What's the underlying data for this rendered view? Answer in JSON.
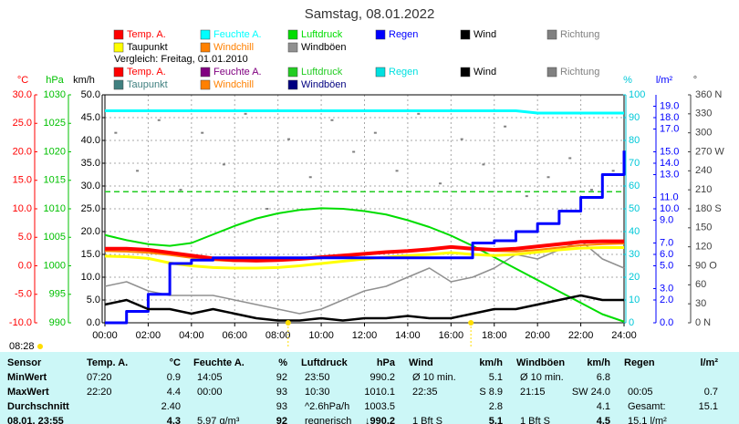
{
  "chart_data": {
    "type": "line",
    "title": "Samstag, 08.01.2022",
    "xlim": [
      0,
      24
    ],
    "xticks": [
      {
        "value": 0,
        "label": "00:00"
      },
      {
        "value": 2,
        "label": "02:00"
      },
      {
        "value": 4,
        "label": "04:00"
      },
      {
        "value": 6,
        "label": "06:00"
      },
      {
        "value": 8,
        "label": "08:00"
      },
      {
        "value": 10,
        "label": "10:00"
      },
      {
        "value": 12,
        "label": "12:00"
      },
      {
        "value": 14,
        "label": "14:00"
      },
      {
        "value": 16,
        "label": "16:00"
      },
      {
        "value": 18,
        "label": "18:00"
      },
      {
        "value": 20,
        "label": "20:00"
      },
      {
        "value": 22,
        "label": "22:00"
      },
      {
        "value": 24,
        "label": "24:00"
      }
    ],
    "grid": true,
    "grid_axis": 2,
    "axes": [
      {
        "unit": "°C",
        "color": "#ff0000",
        "lim": [
          -10,
          30
        ],
        "ticks": [
          {
            "value": 30,
            "label": "30.0"
          },
          {
            "value": 25,
            "label": "25.0"
          },
          {
            "value": 20,
            "label": "20.0"
          },
          {
            "value": 15,
            "label": "15.0"
          },
          {
            "value": 10,
            "label": "10.0"
          },
          {
            "value": 5,
            "label": "5.0"
          },
          {
            "value": 0,
            "label": "0.0"
          },
          {
            "value": -5,
            "label": "-5.0"
          },
          {
            "value": -10,
            "label": "-10.0"
          }
        ]
      },
      {
        "unit": "hPa",
        "color": "#00c000",
        "lim": [
          990,
          1030
        ],
        "ticks": [
          1030,
          1025,
          1020,
          1015,
          1010,
          1005,
          1000,
          995,
          990
        ]
      },
      {
        "unit": "km/h",
        "color": "#000000",
        "lim": [
          0,
          50
        ],
        "ticks": [
          {
            "value": 50,
            "label": "50.0"
          },
          {
            "value": 45,
            "label": "45.0"
          },
          {
            "value": 40,
            "label": "40.0"
          },
          {
            "value": 35,
            "label": "35.0"
          },
          {
            "value": 30,
            "label": "30.0"
          },
          {
            "value": 25,
            "label": "25.0"
          },
          {
            "value": 20,
            "label": "20.0"
          },
          {
            "value": 15,
            "label": "15.0"
          },
          {
            "value": 10,
            "label": "10.0"
          },
          {
            "value": 5,
            "label": "5.0"
          },
          {
            "value": 0,
            "label": "0.0"
          }
        ]
      },
      {
        "unit": "%",
        "color": "#00c8d8",
        "lim": [
          0,
          100
        ],
        "ticks": [
          100,
          90,
          80,
          70,
          60,
          50,
          40,
          30,
          20,
          10,
          0
        ]
      },
      {
        "unit": "l/m²",
        "color": "#0000ff",
        "lim": [
          0,
          20
        ],
        "ticks": [
          {
            "value": 19,
            "label": "19.0"
          },
          {
            "value": 18,
            "label": "18.0"
          },
          {
            "value": 17,
            "label": "17.0"
          },
          {
            "value": 15,
            "label": "15.0"
          },
          {
            "value": 14,
            "label": "14.0"
          },
          {
            "value": 13,
            "label": "13.0"
          },
          {
            "value": 11,
            "label": "11.0"
          },
          {
            "value": 10,
            "label": "10.0"
          },
          {
            "value": 9,
            "label": "9.0"
          },
          {
            "value": 7,
            "label": "7.0"
          },
          {
            "value": 6,
            "label": "6.0"
          },
          {
            "value": 5,
            "label": "5.0"
          },
          {
            "value": 3,
            "label": "3.0"
          },
          {
            "value": 2,
            "label": "2.0"
          },
          {
            "value": 0,
            "label": "0.0"
          }
        ]
      },
      {
        "unit": "°",
        "color": "#404040",
        "lim": [
          0,
          360
        ],
        "ticks": [
          {
            "value": 360,
            "label": "360 N"
          },
          330,
          300,
          {
            "value": 270,
            "label": "270 W"
          },
          240,
          210,
          {
            "value": 180,
            "label": "180 S"
          },
          150,
          120,
          {
            "value": 90,
            "label": "90 O"
          },
          60,
          30,
          {
            "value": 0,
            "label": "0 N"
          }
        ]
      }
    ],
    "x": [
      0,
      1,
      2,
      3,
      4,
      5,
      6,
      7,
      8,
      9,
      10,
      11,
      12,
      13,
      14,
      15,
      16,
      17,
      18,
      19,
      20,
      21,
      22,
      23,
      24
    ],
    "series": [
      {
        "name": "Temp. A.",
        "color": "#ff0000",
        "axis": 0,
        "width": 4,
        "values": [
          3.0,
          3.0,
          2.8,
          2.3,
          1.8,
          1.3,
          1.0,
          0.9,
          1.0,
          1.2,
          1.5,
          1.8,
          2.1,
          2.4,
          2.6,
          2.9,
          3.3,
          3.0,
          2.8,
          3.0,
          3.4,
          3.8,
          4.2,
          4.3,
          4.3
        ]
      },
      {
        "name": "Feuchte A.",
        "color": "#00ffff",
        "axis": 3,
        "width": 3,
        "values": [
          93,
          93,
          93,
          93,
          93,
          93,
          93,
          93,
          93,
          93,
          93,
          93,
          93,
          93,
          93,
          93,
          93,
          93,
          93,
          93,
          92,
          92,
          92,
          92,
          92
        ]
      },
      {
        "name": "Luftdruck",
        "color": "#00dd00",
        "axis": 1,
        "width": 2,
        "values": [
          1005.4,
          1004.5,
          1003.8,
          1003.5,
          1004.0,
          1005.5,
          1007.0,
          1008.3,
          1009.2,
          1009.8,
          1010.1,
          1010.0,
          1009.6,
          1009.0,
          1008.0,
          1006.8,
          1005.3,
          1003.5,
          1001.5,
          999.5,
          997.5,
          995.5,
          993.5,
          991.5,
          990.2
        ]
      },
      {
        "name": "Regen",
        "color": "#0000ff",
        "axis": 4,
        "width": 3,
        "step": true,
        "values": [
          0,
          1.0,
          2.5,
          5.2,
          5.5,
          5.7,
          5.7,
          5.7,
          5.7,
          5.7,
          5.7,
          5.7,
          5.7,
          5.7,
          5.7,
          5.7,
          5.7,
          7.0,
          7.2,
          8.0,
          8.7,
          9.8,
          11.0,
          13.0,
          15.1
        ]
      },
      {
        "name": "Wind",
        "color": "#000000",
        "axis": 2,
        "width": 2.5,
        "values": [
          4,
          5,
          3,
          3,
          2,
          3,
          2,
          1,
          0.5,
          0.5,
          1,
          0.5,
          1,
          1,
          1.5,
          1,
          1,
          2,
          3,
          3,
          4,
          5,
          6,
          5,
          5
        ]
      },
      {
        "name": "Richtung",
        "color": "#808080",
        "axis": 5,
        "dots": true,
        "x": [
          0.5,
          1.5,
          2.5,
          3.5,
          4.5,
          5.5,
          6.5,
          7.5,
          8.5,
          9.5,
          10.5,
          11.5,
          12.5,
          13.5,
          14.5,
          15.5,
          16.5,
          17.5,
          18.5,
          19.5,
          20.5,
          21.5,
          22.5,
          23.5
        ],
        "values": [
          300,
          240,
          320,
          210,
          300,
          250,
          330,
          180,
          290,
          230,
          320,
          270,
          300,
          240,
          330,
          220,
          290,
          250,
          310,
          200,
          230,
          260,
          210,
          240
        ]
      },
      {
        "name": "Taupunkt",
        "color": "#ffff00",
        "label_color": "#000000",
        "axis": 0,
        "width": 3,
        "values": [
          1.7,
          1.6,
          1.3,
          0.5,
          0.0,
          -0.3,
          -0.4,
          -0.4,
          -0.3,
          0.0,
          0.4,
          0.8,
          1.2,
          1.5,
          1.8,
          2.0,
          2.3,
          2.0,
          1.8,
          2.0,
          2.4,
          2.8,
          3.1,
          3.2,
          3.2
        ]
      },
      {
        "name": "Windchill",
        "color": "#ff8000",
        "axis": 0,
        "width": 2,
        "values": [
          2.6,
          2.5,
          2.3,
          1.9,
          1.4,
          1.0,
          0.8,
          0.9,
          1.0,
          1.2,
          1.5,
          1.8,
          2.1,
          2.4,
          2.6,
          2.9,
          3.3,
          3.0,
          2.6,
          2.5,
          2.8,
          3.2,
          3.6,
          3.8,
          3.9
        ]
      },
      {
        "name": "Windböen",
        "color": "#909090",
        "label_color": "#000000",
        "axis": 2,
        "width": 1.5,
        "values": [
          8,
          9,
          7,
          6,
          6,
          6,
          5,
          4,
          3,
          2,
          3,
          5,
          7,
          8,
          10,
          12,
          9,
          10,
          12,
          15,
          14,
          16,
          18,
          14,
          12
        ]
      }
    ],
    "comparison": {
      "label": "Vergleich: Freitag, 01.01.2010",
      "series": [
        {
          "name": "Temp. A.",
          "color": "#ff0000"
        },
        {
          "name": "Feuchte A.",
          "color": "#800080"
        },
        {
          "name": "Luftdruck",
          "color": "#22cc22",
          "axis": 1,
          "dashed": true,
          "x": [
            0,
            24
          ],
          "values": [
            1013,
            1013
          ]
        },
        {
          "name": "Regen",
          "color": "#00e0e0"
        },
        {
          "name": "Wind",
          "color": "#000000"
        },
        {
          "name": "Richtung",
          "color": "#808080"
        },
        {
          "name": "Taupunkt",
          "color": "#408080"
        },
        {
          "name": "Windchill",
          "color": "#ff8000"
        },
        {
          "name": "Windböen",
          "color": "#000080"
        }
      ]
    },
    "sun_markers": [
      8.47,
      16.92
    ],
    "sun_color": "#ffdd00",
    "sun_label": "08:28"
  },
  "table": {
    "sensor_header": "Sensor",
    "columns": [
      {
        "name": "Temp. A.",
        "unit": "°C"
      },
      {
        "name": "Feuchte A.",
        "unit": "%"
      },
      {
        "name": "Luftdruck",
        "unit": "hPa"
      },
      {
        "name": "Wind",
        "unit": "km/h"
      },
      {
        "name": "Windböen",
        "unit": "km/h"
      },
      {
        "name": "Regen",
        "unit": "l/m²"
      }
    ],
    "rows": [
      {
        "label": "MinWert",
        "cells": [
          [
            "07:20",
            "0.9"
          ],
          [
            "14:05",
            "92"
          ],
          [
            "23:50",
            "990.2"
          ],
          [
            "Ø 10 min.",
            "5.1"
          ],
          [
            "Ø 10 min.",
            "6.8"
          ],
          null
        ]
      },
      {
        "label": "MaxWert",
        "cells": [
          [
            "22:20",
            "4.4"
          ],
          [
            "00:00",
            "93"
          ],
          [
            "10:30",
            "1010.1"
          ],
          [
            "22:35",
            "S 8.9"
          ],
          [
            "21:15",
            "SW 24.0"
          ],
          [
            "00:05",
            "0.7"
          ]
        ]
      },
      {
        "label": "Durchschnitt",
        "cells": [
          [
            null,
            "2.40"
          ],
          [
            null,
            "93"
          ],
          [
            "^2.6hPa/h",
            "1003.5"
          ],
          [
            null,
            "2.8"
          ],
          [
            null,
            "4.1"
          ],
          [
            "Gesamt:",
            "15.1"
          ]
        ]
      },
      {
        "label": "08.01. 23:55",
        "cells": [
          [
            null,
            "4.3"
          ],
          [
            "5.97 g/m³",
            "92"
          ],
          [
            "regnerisch",
            "↓990.2"
          ],
          [
            "1 Bft S",
            "5.1"
          ],
          [
            "1 Bft S",
            "4.5"
          ],
          [
            "15.1 l/m²",
            null
          ]
        ]
      }
    ]
  }
}
